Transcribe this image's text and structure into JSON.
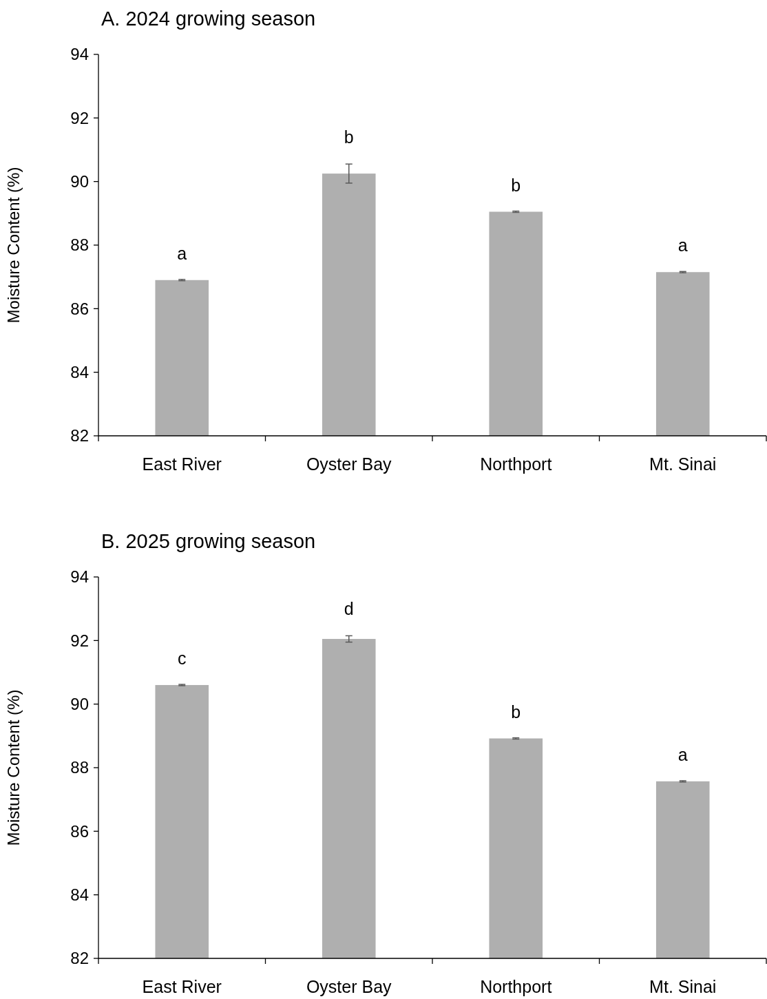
{
  "chart_data": [
    {
      "type": "bar",
      "title": "A. 2024 growing season",
      "ylabel": "Moisture Content (%)",
      "categories": [
        "East River",
        "Oyster Bay",
        "Northport",
        "Mt. Sinai"
      ],
      "values": [
        86.9,
        90.25,
        89.05,
        87.15
      ],
      "errors": [
        0.02,
        0.3,
        0.02,
        0.02
      ],
      "color": "#afafaf",
      "ylim": [
        82,
        94
      ],
      "yticks": [
        82,
        84,
        86,
        88,
        90,
        92,
        94
      ],
      "annotations": [
        {
          "text": "a",
          "x": "East River",
          "y": 86.9
        },
        {
          "text": "b",
          "x": "Oyster Bay",
          "y": 90.55
        },
        {
          "text": "b",
          "x": "Northport",
          "y": 89.05
        },
        {
          "text": "a",
          "x": "Mt. Sinai",
          "y": 87.15
        }
      ]
    },
    {
      "type": "bar",
      "title": "B. 2025 growing season",
      "ylabel": "Moisture Content (%)",
      "categories": [
        "East River",
        "Oyster Bay",
        "Northport",
        "Mt. Sinai"
      ],
      "values": [
        90.6,
        92.05,
        88.92,
        87.57
      ],
      "errors": [
        0.02,
        0.1,
        0.02,
        0.02
      ],
      "color": "#afafaf",
      "ylim": [
        82,
        94
      ],
      "yticks": [
        82,
        84,
        86,
        88,
        90,
        92,
        94
      ],
      "annotations": [
        {
          "text": "c",
          "x": "East River",
          "y": 90.6
        },
        {
          "text": "d",
          "x": "Oyster Bay",
          "y": 92.15
        },
        {
          "text": "b",
          "x": "Northport",
          "y": 88.92
        },
        {
          "text": "a",
          "x": "Mt. Sinai",
          "y": 87.57
        }
      ]
    }
  ]
}
